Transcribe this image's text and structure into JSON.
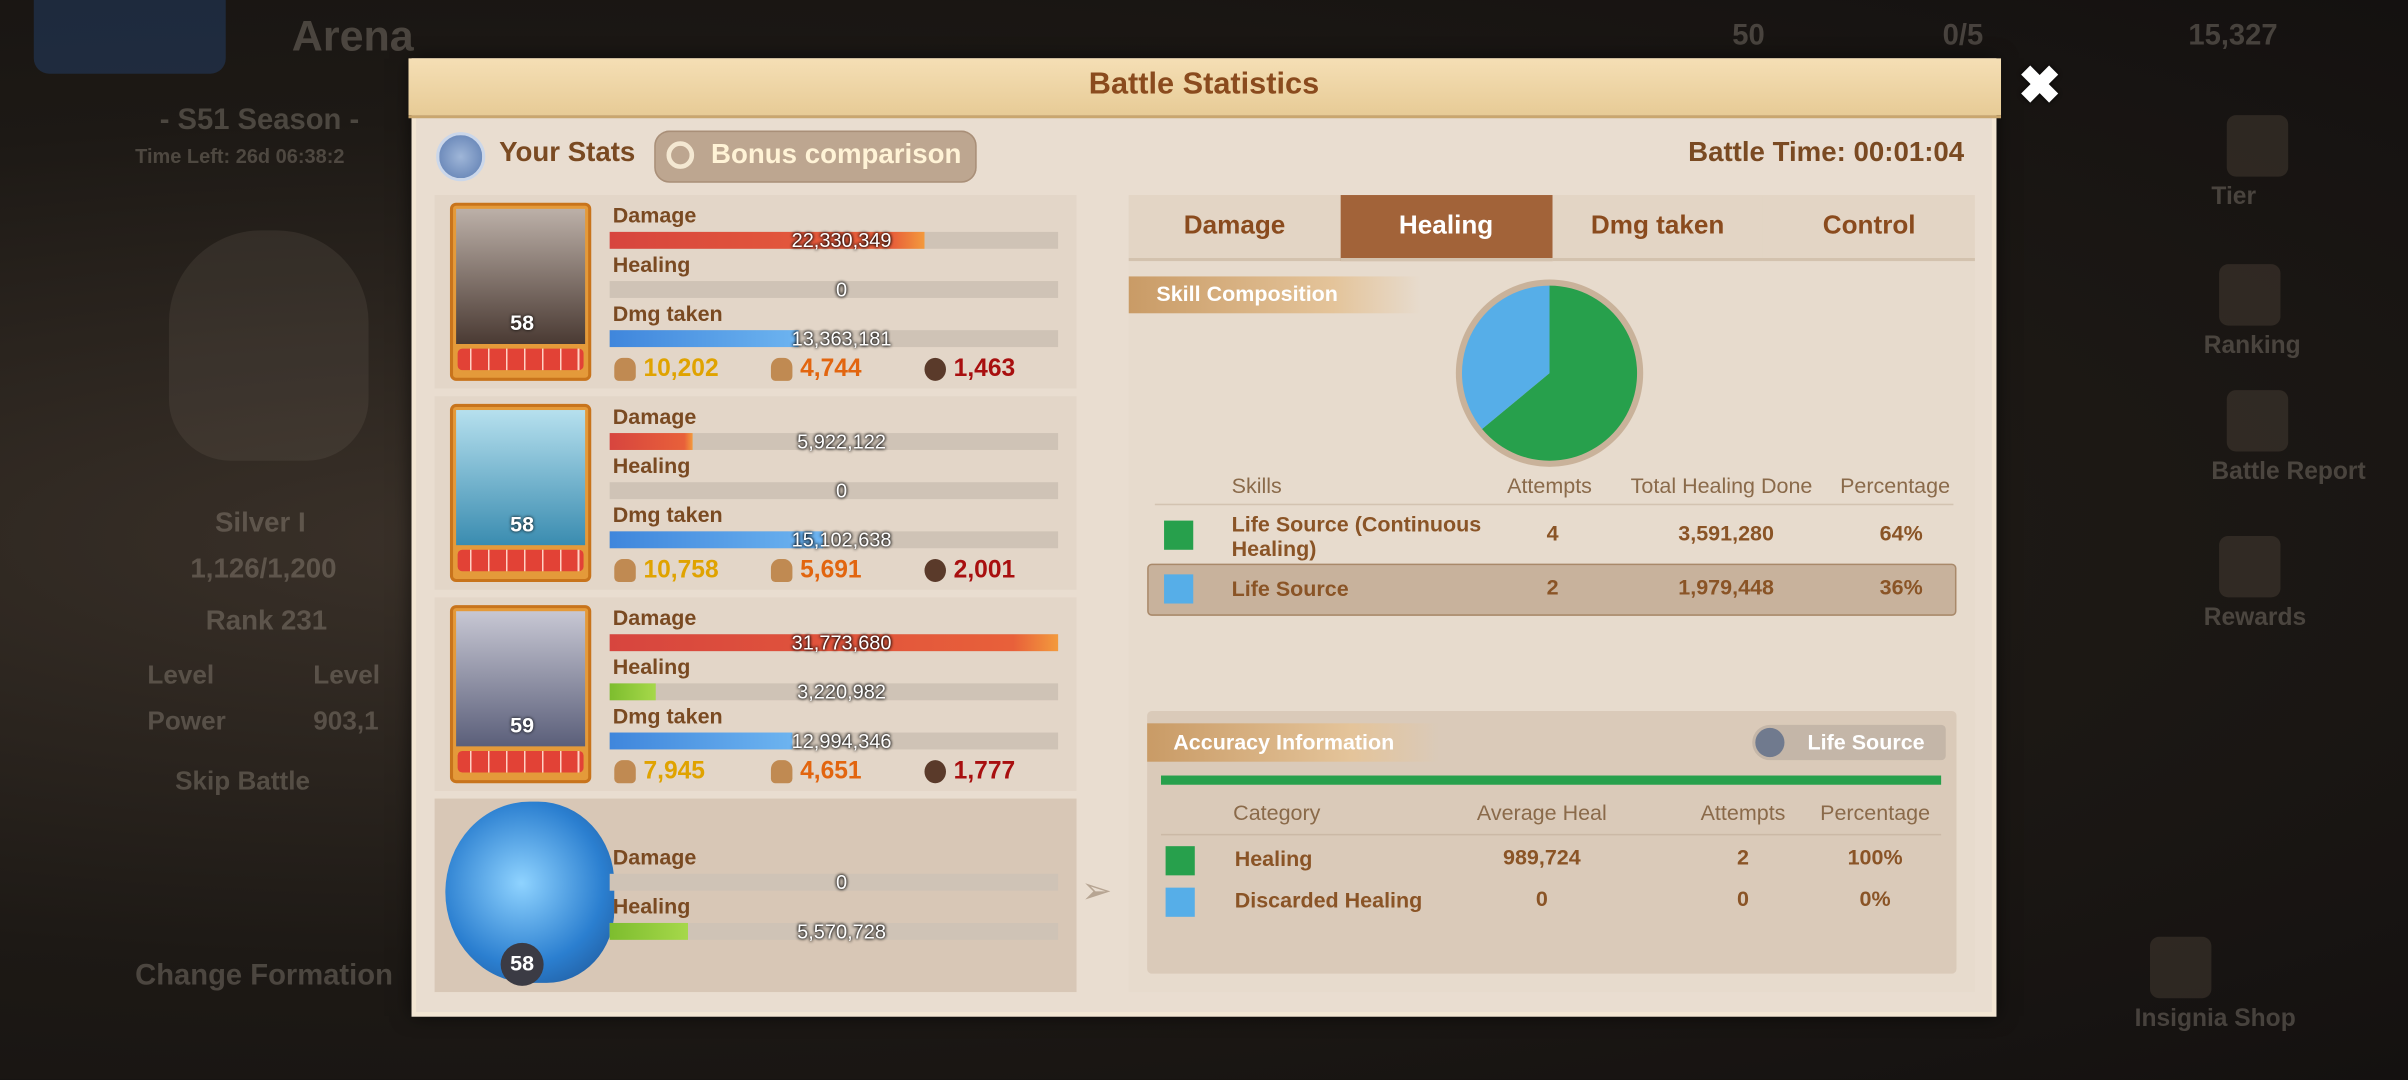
{
  "background": {
    "title": "Arena",
    "season": "- S51 Season -",
    "time_left": "Time Left: 26d 06:38:2",
    "league": "Silver I",
    "points": "1,126/1,200",
    "rank": "Rank 231",
    "level_label": "Level",
    "level_value": "Level",
    "power_label": "Power",
    "power_value": "903,1",
    "skip_battle": "Skip Battle",
    "change_formation": "Change Formation",
    "currencies": [
      "50",
      "0/5",
      "15,327"
    ],
    "side_menu": [
      "Tier",
      "Ranking",
      "Battle Report",
      "Rewards",
      "Insignia Shop"
    ]
  },
  "dialog": {
    "title": "Battle Statistics",
    "your_stats": "Your Stats",
    "bonus_comparison": "Bonus comparison",
    "battle_time": "Battle Time: 00:01:04",
    "heroes": [
      {
        "level": "58",
        "stats": [
          {
            "label": "Damage",
            "value": "22,330,349"
          },
          {
            "label": "Healing",
            "value": "0"
          },
          {
            "label": "Dmg taken",
            "value": "13,363,181"
          }
        ],
        "counts": [
          "10,202",
          "4,744",
          "1,463"
        ]
      },
      {
        "level": "58",
        "stats": [
          {
            "label": "Damage",
            "value": "5,922,122"
          },
          {
            "label": "Healing",
            "value": "0"
          },
          {
            "label": "Dmg taken",
            "value": "15,102,638"
          }
        ],
        "counts": [
          "10,758",
          "5,691",
          "2,001"
        ]
      },
      {
        "level": "59",
        "stats": [
          {
            "label": "Damage",
            "value": "31,773,680"
          },
          {
            "label": "Healing",
            "value": "3,220,982"
          },
          {
            "label": "Dmg taken",
            "value": "12,994,346"
          }
        ],
        "counts": [
          "7,945",
          "4,651",
          "1,777"
        ]
      },
      {
        "level": "58",
        "stats": [
          {
            "label": "Damage",
            "value": "0"
          },
          {
            "label": "Healing",
            "value": "5,570,728"
          }
        ]
      }
    ],
    "tabs": [
      "Damage",
      "Healing",
      "Dmg taken",
      "Control"
    ],
    "active_tab": 1,
    "skill_composition": {
      "title": "Skill Composition",
      "headers": [
        "Skills",
        "Attempts",
        "Total Healing Done",
        "Percentage"
      ],
      "selected_row": 1,
      "rows": [
        {
          "color": "#27a04c",
          "skill": "Life Source (Continuous Healing)",
          "attempts": "4",
          "total": "3,591,280",
          "percentage": "64%"
        },
        {
          "color": "#56aee8",
          "skill": "Life Source",
          "attempts": "2",
          "total": "1,979,448",
          "percentage": "36%"
        }
      ]
    },
    "accuracy": {
      "title": "Accuracy Information",
      "skill_button": "Life Source",
      "headers": [
        "Category",
        "Average Heal",
        "Attempts",
        "Percentage"
      ],
      "rows": [
        {
          "color": "#27a04c",
          "category": "Healing",
          "average": "989,724",
          "attempts": "2",
          "percentage": "100%"
        },
        {
          "color": "#56aee8",
          "category": "Discarded Healing",
          "average": "0",
          "attempts": "0",
          "percentage": "0%"
        }
      ]
    }
  }
}
